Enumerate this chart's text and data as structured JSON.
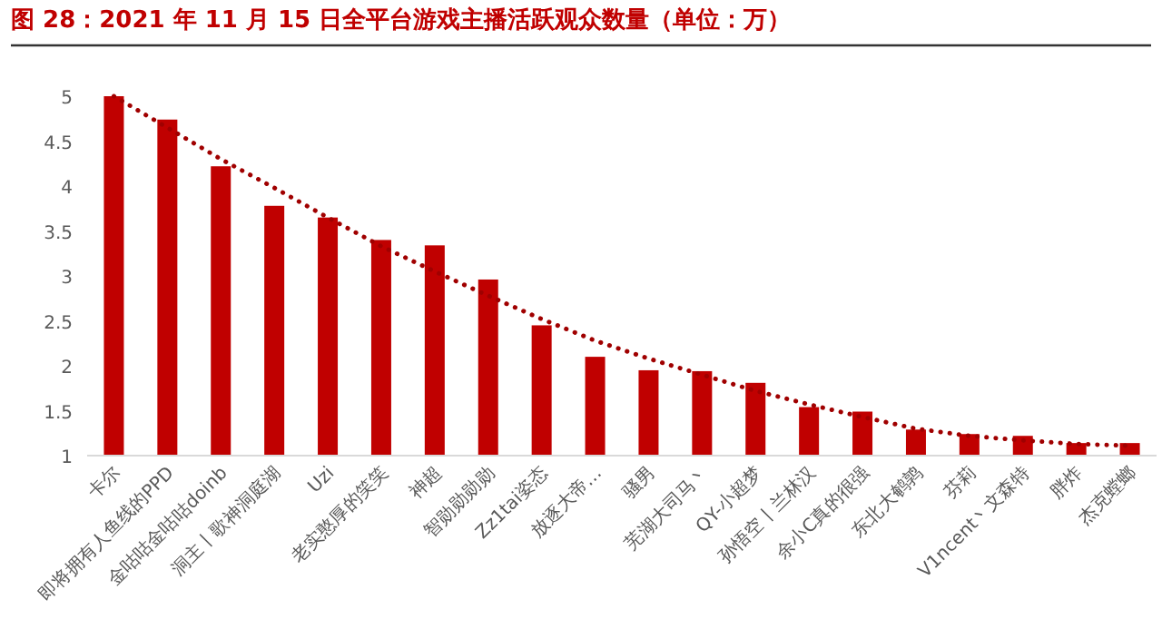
{
  "chart_data": {
    "type": "bar",
    "title": "图 28：2021 年 11 月 15 日全平台游戏主播活跃观众数量（单位：万）",
    "categories": [
      "卡尔",
      "即将拥有人鱼线的PPD",
      "金咕咕金咕咕doinb",
      "洞主丨歌神洞庭湖",
      "Uzi",
      "老实憨厚的笑笑",
      "神超",
      "智勋勋勋勋",
      "Zz1tai姿态",
      "放逐大帝…",
      "骚男",
      "芜湖大司马丶",
      "QY-小超梦",
      "孙悟空丨兰林汉",
      "余小C真的很强",
      "东北大鹌鹑",
      "芬莉",
      "V1ncent丶文森特",
      "胖炸",
      "杰克螳螂"
    ],
    "series": [
      {
        "color": "#c00000",
        "values": [
          5.0,
          4.74,
          4.22,
          3.78,
          3.65,
          3.4,
          3.34,
          2.96,
          2.45,
          2.1,
          1.95,
          1.94,
          1.81,
          1.54,
          1.49,
          1.29,
          1.24,
          1.22,
          1.14,
          1.14
        ]
      },
      {
        "type": "line",
        "color": "#a00000",
        "line_style": "dotted",
        "marker": "none",
        "values": [
          5.0,
          4.65,
          4.3,
          3.98,
          3.65,
          3.33,
          3.05,
          2.78,
          2.52,
          2.28,
          2.08,
          1.9,
          1.72,
          1.57,
          1.43,
          1.3,
          1.22,
          1.17,
          1.13,
          1.11
        ]
      }
    ],
    "ylim": [
      1,
      5
    ],
    "yticks": [
      1,
      1.5,
      2,
      2.5,
      3,
      3.5,
      4,
      4.5,
      5
    ],
    "grid": false
  }
}
